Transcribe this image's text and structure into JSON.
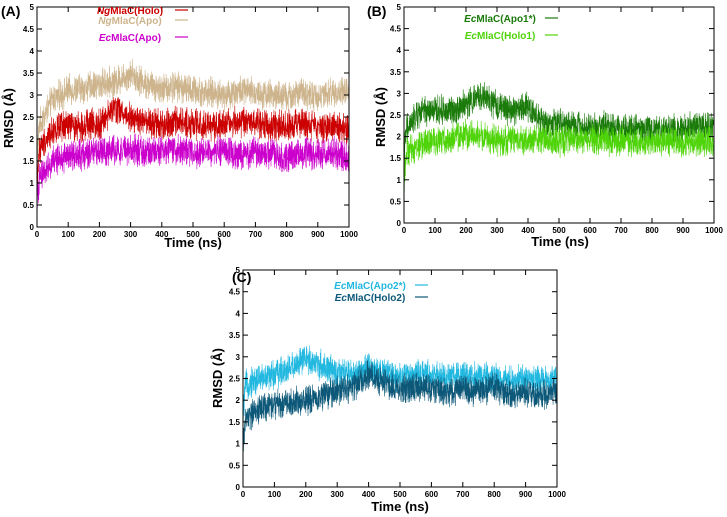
{
  "chart_data": [
    {
      "panel_label": "(A)",
      "type": "line",
      "xlabel": "Time (ns)",
      "ylabel": "RMSD (Å)",
      "xlim": [
        0,
        1000
      ],
      "ylim": [
        0,
        5
      ],
      "x_ticks": [
        0,
        100,
        200,
        300,
        400,
        500,
        600,
        700,
        800,
        900,
        1000
      ],
      "y_ticks": [
        0,
        0.5,
        1,
        1.5,
        2,
        2.5,
        3,
        3.5,
        4,
        4.5,
        5
      ],
      "legend_position": "top-center",
      "series": [
        {
          "name_prefix": "Ng",
          "name_suffix": "MlaC(Apo)",
          "color": "#cdb48c",
          "x": [
            0,
            50,
            100,
            150,
            200,
            250,
            300,
            350,
            400,
            450,
            500,
            550,
            600,
            650,
            700,
            750,
            800,
            850,
            900,
            950,
            1000
          ],
          "values": [
            2.2,
            2.9,
            3.1,
            3.15,
            3.25,
            3.3,
            3.5,
            3.25,
            3.15,
            3.2,
            3.1,
            3.05,
            3.0,
            3.1,
            3.05,
            3.0,
            2.95,
            3.05,
            2.95,
            3.05,
            3.1
          ]
        },
        {
          "name_prefix": "Ng",
          "name_suffix": "MlaC(Holo)",
          "color": "#cc0000",
          "x": [
            0,
            50,
            100,
            150,
            200,
            250,
            300,
            350,
            400,
            450,
            500,
            550,
            600,
            650,
            700,
            750,
            800,
            850,
            900,
            950,
            1000
          ],
          "values": [
            1.7,
            2.2,
            2.3,
            2.3,
            2.35,
            2.7,
            2.5,
            2.35,
            2.3,
            2.4,
            2.35,
            2.3,
            2.35,
            2.4,
            2.35,
            2.3,
            2.3,
            2.35,
            2.25,
            2.3,
            2.2
          ]
        },
        {
          "name_prefix": "Ec",
          "name_suffix": "MlaC(Apo)",
          "color": "#cc00cc",
          "x": [
            0,
            50,
            100,
            150,
            200,
            250,
            300,
            350,
            400,
            450,
            500,
            550,
            600,
            650,
            700,
            750,
            800,
            850,
            900,
            950,
            1000
          ],
          "values": [
            1.1,
            1.5,
            1.6,
            1.65,
            1.7,
            1.75,
            1.75,
            1.7,
            1.7,
            1.75,
            1.7,
            1.7,
            1.75,
            1.65,
            1.7,
            1.65,
            1.6,
            1.7,
            1.65,
            1.7,
            1.6
          ]
        }
      ]
    },
    {
      "panel_label": "(B)",
      "type": "line",
      "xlabel": "Time (ns)",
      "ylabel": "RMSD (Å)",
      "xlim": [
        0,
        1000
      ],
      "ylim": [
        0,
        5
      ],
      "x_ticks": [
        0,
        100,
        200,
        300,
        400,
        500,
        600,
        700,
        800,
        900,
        1000
      ],
      "y_ticks": [
        0,
        0.5,
        1,
        1.5,
        2,
        2.5,
        3,
        3.5,
        4,
        4.5,
        5
      ],
      "legend_position": "top-center",
      "series": [
        {
          "name_prefix": "Ec",
          "name_suffix": "MlaC(Apo1*)",
          "color": "#1a7a0a",
          "x": [
            0,
            50,
            100,
            150,
            200,
            250,
            300,
            350,
            400,
            450,
            500,
            550,
            600,
            650,
            700,
            750,
            800,
            850,
            900,
            950,
            1000
          ],
          "values": [
            2.1,
            2.55,
            2.6,
            2.6,
            2.75,
            2.95,
            2.7,
            2.6,
            2.7,
            2.3,
            2.3,
            2.25,
            2.2,
            2.25,
            2.2,
            2.2,
            2.15,
            2.2,
            2.2,
            2.25,
            2.2
          ]
        },
        {
          "name_prefix": "Ec",
          "name_suffix": "MlaC(Holo1)",
          "color": "#4fd40a",
          "x": [
            0,
            50,
            100,
            150,
            200,
            250,
            300,
            350,
            400,
            450,
            500,
            550,
            600,
            650,
            700,
            750,
            800,
            850,
            900,
            950,
            1000
          ],
          "values": [
            1.6,
            1.8,
            1.9,
            1.95,
            2.05,
            2.0,
            1.9,
            1.95,
            1.9,
            1.95,
            1.9,
            1.9,
            1.95,
            1.9,
            1.9,
            1.85,
            1.9,
            1.9,
            1.85,
            1.9,
            1.85
          ]
        }
      ]
    },
    {
      "panel_label": "(C)",
      "type": "line",
      "xlabel": "Time (ns)",
      "ylabel": "RMSD (Å)",
      "xlim": [
        0,
        1000
      ],
      "ylim": [
        0,
        5
      ],
      "x_ticks": [
        0,
        100,
        200,
        300,
        400,
        500,
        600,
        700,
        800,
        900,
        1000
      ],
      "y_ticks": [
        0,
        0.5,
        1,
        1.5,
        2,
        2.5,
        3,
        3.5,
        4,
        4.5,
        5
      ],
      "legend_position": "top-center",
      "series": [
        {
          "name_prefix": "Ec",
          "name_suffix": "MlaC(Apo2*)",
          "color": "#22b8e0",
          "x": [
            0,
            50,
            100,
            150,
            200,
            250,
            300,
            350,
            400,
            450,
            500,
            550,
            600,
            650,
            700,
            750,
            800,
            850,
            900,
            950,
            1000
          ],
          "values": [
            2.3,
            2.5,
            2.6,
            2.75,
            2.95,
            2.8,
            2.6,
            2.6,
            2.75,
            2.6,
            2.55,
            2.6,
            2.55,
            2.5,
            2.6,
            2.5,
            2.5,
            2.45,
            2.5,
            2.45,
            2.5
          ]
        },
        {
          "name_prefix": "Ec",
          "name_suffix": "MlaC(Holo2)",
          "color": "#0d5878",
          "x": [
            0,
            50,
            100,
            150,
            200,
            250,
            300,
            350,
            400,
            450,
            500,
            550,
            600,
            650,
            700,
            750,
            800,
            850,
            900,
            950,
            1000
          ],
          "values": [
            1.5,
            1.8,
            1.9,
            1.95,
            2.0,
            2.1,
            2.2,
            2.3,
            2.55,
            2.4,
            2.25,
            2.3,
            2.25,
            2.2,
            2.25,
            2.2,
            2.3,
            2.15,
            2.2,
            2.1,
            2.2
          ]
        }
      ]
    }
  ]
}
